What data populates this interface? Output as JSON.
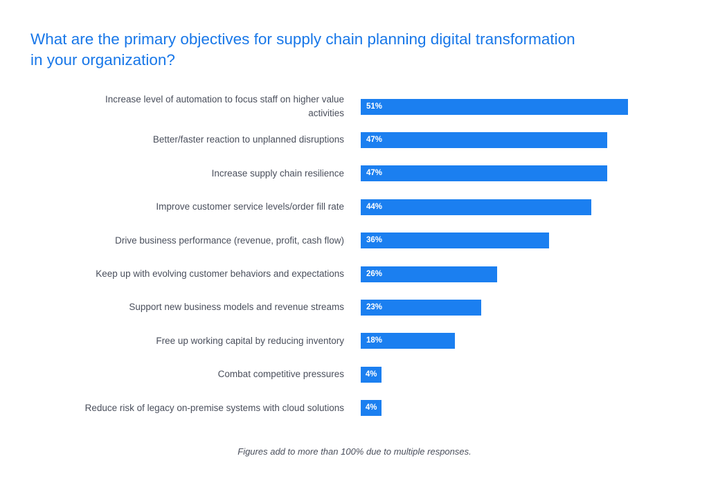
{
  "chart_data": {
    "type": "bar",
    "orientation": "horizontal",
    "title": "What are the primary objectives for supply chain planning digital transformation in your organization?",
    "categories": [
      "Increase level of automation to focus staff on higher value activities",
      "Better/faster reaction to unplanned disruptions",
      "Increase supply chain resilience",
      "Improve customer service levels/order fill rate",
      "Drive business performance (revenue, profit, cash flow)",
      "Keep up with evolving customer behaviors and expectations",
      "Support new business models and revenue streams",
      "Free up working capital by reducing inventory",
      "Combat competitive pressures",
      "Reduce risk of legacy on-premise systems with cloud solutions"
    ],
    "values": [
      51,
      47,
      47,
      44,
      36,
      26,
      23,
      18,
      4,
      4
    ],
    "value_labels": [
      "51%",
      "47%",
      "47%",
      "44%",
      "36%",
      "26%",
      "23%",
      "18%",
      "4%",
      "4%"
    ],
    "unit": "%",
    "bar_color": "#1b7ff0",
    "xlim": [
      0,
      51
    ],
    "footnote": "Figures add to more than 100% due to multiple responses."
  }
}
